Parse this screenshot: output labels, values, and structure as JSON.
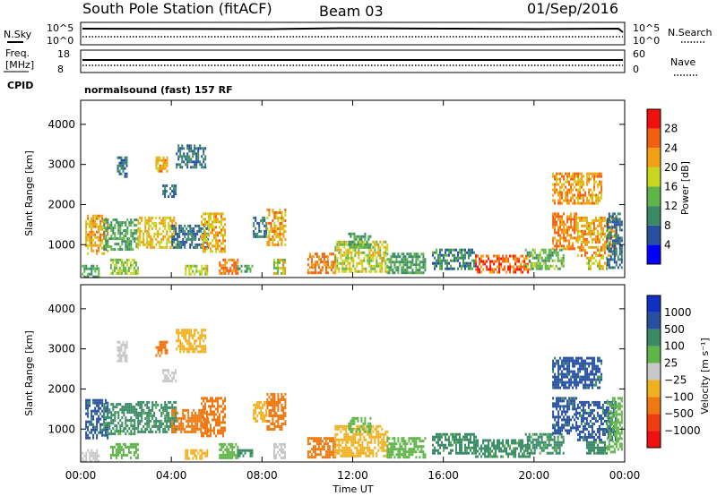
{
  "header": {
    "title": "South Pole Station (fitACF)",
    "beam": "Beam 03",
    "date": "01/Sep/2016"
  },
  "top_panels": {
    "nsky_label": "N.Sky",
    "nsearch_label": "N.Search",
    "nsky_ticks": [
      "10^5",
      "10^0"
    ],
    "nsearch_ticks": [
      "10^5",
      "10^0"
    ],
    "freq_label_1": "Freq.",
    "freq_label_2": "[MHz]",
    "freq_ticks": [
      "18",
      "8"
    ],
    "nave_label": "Nave",
    "nave_ticks": [
      "60",
      "0"
    ],
    "cpid_label": "CPID",
    "cpid_text": "normalsound (fast) 157 RF"
  },
  "colors": {
    "power_scale": [
      "#0000ff",
      "#2850a0",
      "#3a8a66",
      "#5fb548",
      "#c8d620",
      "#f0a010",
      "#f06010",
      "#f01010"
    ],
    "velocity_scale": [
      "#f01010",
      "#f03c10",
      "#f07810",
      "#f0b020",
      "#c8c8c8",
      "#5fb548",
      "#3a8a66",
      "#2850a0",
      "#1030c0"
    ],
    "blank": "#ffffff"
  },
  "chart_data": [
    {
      "type": "heatmap",
      "title": "Power",
      "ylabel": "Slant Range [km]",
      "xlabel": "Time UT",
      "xlim": [
        0,
        24
      ],
      "ylim": [
        180,
        4600
      ],
      "x_tick_labels": [
        "00:00",
        "04:00",
        "08:00",
        "12:00",
        "16:00",
        "20:00",
        "00:00"
      ],
      "y_tick_labels": [
        "1000",
        "2000",
        "3000",
        "4000"
      ],
      "y_ticks": [
        1000,
        2000,
        3000,
        4000
      ],
      "colorbar": {
        "label": "Power [dB]",
        "ticks": [
          "4",
          "8",
          "12",
          "16",
          "20",
          "24",
          "28"
        ],
        "range": [
          0,
          32
        ]
      },
      "regions": [
        {
          "t0": 0.05,
          "t1": 0.8,
          "r0": 180,
          "r1": 500,
          "v": 12
        },
        {
          "t0": 0.2,
          "t1": 1.2,
          "r0": 800,
          "r1": 1750,
          "v": 22
        },
        {
          "t0": 1.0,
          "t1": 2.5,
          "r0": 900,
          "r1": 1650,
          "v": 12
        },
        {
          "t0": 1.3,
          "t1": 2.5,
          "r0": 250,
          "r1": 650,
          "v": 16
        },
        {
          "t0": 2.5,
          "t1": 4.2,
          "r0": 900,
          "r1": 1700,
          "v": 20
        },
        {
          "t0": 4.0,
          "t1": 5.6,
          "r0": 900,
          "r1": 1500,
          "v": 8
        },
        {
          "t0": 5.3,
          "t1": 6.4,
          "r0": 800,
          "r1": 1800,
          "v": 21
        },
        {
          "t0": 1.6,
          "t1": 2.0,
          "r0": 2700,
          "r1": 3200,
          "v": 8
        },
        {
          "t0": 3.3,
          "t1": 3.8,
          "r0": 2800,
          "r1": 3200,
          "v": 22
        },
        {
          "t0": 4.2,
          "t1": 5.5,
          "r0": 2900,
          "r1": 3500,
          "v": 8
        },
        {
          "t0": 3.6,
          "t1": 4.2,
          "r0": 2200,
          "r1": 2500,
          "v": 8
        },
        {
          "t0": 4.6,
          "t1": 5.6,
          "r0": 250,
          "r1": 500,
          "v": 18
        },
        {
          "t0": 6.1,
          "t1": 6.9,
          "r0": 300,
          "r1": 650,
          "v": 24
        },
        {
          "t0": 6.9,
          "t1": 7.6,
          "r0": 300,
          "r1": 500,
          "v": 12
        },
        {
          "t0": 7.6,
          "t1": 8.2,
          "r0": 1200,
          "r1": 1700,
          "v": 8
        },
        {
          "t0": 8.2,
          "t1": 9.0,
          "r0": 1000,
          "r1": 1900,
          "v": 22
        },
        {
          "t0": 8.5,
          "t1": 9.0,
          "r0": 250,
          "r1": 650,
          "v": 18
        },
        {
          "t0": 10.0,
          "t1": 11.2,
          "r0": 300,
          "r1": 800,
          "v": 24
        },
        {
          "t0": 11.2,
          "t1": 13.5,
          "r0": 300,
          "r1": 1100,
          "v": 18
        },
        {
          "t0": 11.8,
          "t1": 12.8,
          "r0": 900,
          "r1": 1300,
          "v": 12
        },
        {
          "t0": 13.5,
          "t1": 15.2,
          "r0": 300,
          "r1": 800,
          "v": 12
        },
        {
          "t0": 15.5,
          "t1": 17.4,
          "r0": 400,
          "r1": 900,
          "v": 10
        },
        {
          "t0": 17.4,
          "t1": 19.8,
          "r0": 300,
          "r1": 750,
          "v": 26
        },
        {
          "t0": 19.6,
          "t1": 21.3,
          "r0": 400,
          "r1": 900,
          "v": 14
        },
        {
          "t0": 20.8,
          "t1": 21.9,
          "r0": 900,
          "r1": 1800,
          "v": 24
        },
        {
          "t0": 21.9,
          "t1": 23.6,
          "r0": 700,
          "r1": 1700,
          "v": 22
        },
        {
          "t0": 22.3,
          "t1": 23.2,
          "r0": 400,
          "r1": 700,
          "v": 18
        },
        {
          "t0": 20.8,
          "t1": 23.0,
          "r0": 2000,
          "r1": 2800,
          "v": 22
        },
        {
          "t0": 23.2,
          "t1": 23.9,
          "r0": 400,
          "r1": 1800,
          "v": 8
        }
      ]
    },
    {
      "type": "heatmap",
      "title": "Velocity",
      "ylabel": "Slant Range [km]",
      "xlabel": "Time UT",
      "xlim": [
        0,
        24
      ],
      "ylim": [
        180,
        4600
      ],
      "x_tick_labels": [
        "00:00",
        "04:00",
        "08:00",
        "12:00",
        "16:00",
        "20:00",
        "00:00"
      ],
      "y_tick_labels": [
        "1000",
        "2000",
        "3000",
        "4000"
      ],
      "y_ticks": [
        1000,
        2000,
        3000,
        4000
      ],
      "colorbar": {
        "label": "Velocity [m s⁻¹]",
        "ticks": [
          "1000",
          "500",
          "100",
          "25",
          "−25",
          "−100",
          "−500",
          "−1000"
        ]
      },
      "regions": [
        {
          "t0": 0.05,
          "t1": 0.8,
          "r0": 180,
          "r1": 500,
          "v": 0
        },
        {
          "t0": 0.2,
          "t1": 1.2,
          "r0": 800,
          "r1": 1750,
          "v": 700
        },
        {
          "t0": 1.0,
          "t1": 2.5,
          "r0": 900,
          "r1": 1650,
          "v": 150
        },
        {
          "t0": 1.3,
          "t1": 2.5,
          "r0": 250,
          "r1": 650,
          "v": 60
        },
        {
          "t0": 2.5,
          "t1": 4.2,
          "r0": 900,
          "r1": 1700,
          "v": 150
        },
        {
          "t0": 4.0,
          "t1": 5.6,
          "r0": 900,
          "r1": 1500,
          "v": -300
        },
        {
          "t0": 5.3,
          "t1": 6.4,
          "r0": 800,
          "r1": 1800,
          "v": -300
        },
        {
          "t0": 1.6,
          "t1": 2.0,
          "r0": 2700,
          "r1": 3200,
          "v": 10
        },
        {
          "t0": 3.3,
          "t1": 3.8,
          "r0": 2800,
          "r1": 3200,
          "v": -200
        },
        {
          "t0": 4.2,
          "t1": 5.5,
          "r0": 2900,
          "r1": 3500,
          "v": -60
        },
        {
          "t0": 3.6,
          "t1": 4.2,
          "r0": 2200,
          "r1": 2500,
          "v": 10
        },
        {
          "t0": 4.6,
          "t1": 5.6,
          "r0": 250,
          "r1": 500,
          "v": -60
        },
        {
          "t0": 6.1,
          "t1": 6.9,
          "r0": 300,
          "r1": 650,
          "v": 60
        },
        {
          "t0": 6.9,
          "t1": 7.6,
          "r0": 300,
          "r1": 500,
          "v": 150
        },
        {
          "t0": 7.6,
          "t1": 8.2,
          "r0": 1200,
          "r1": 1700,
          "v": -60
        },
        {
          "t0": 8.2,
          "t1": 9.0,
          "r0": 1000,
          "r1": 1900,
          "v": -300
        },
        {
          "t0": 8.5,
          "t1": 9.0,
          "r0": 250,
          "r1": 650,
          "v": 10
        },
        {
          "t0": 10.0,
          "t1": 11.2,
          "r0": 300,
          "r1": 800,
          "v": -300
        },
        {
          "t0": 11.2,
          "t1": 13.5,
          "r0": 300,
          "r1": 1100,
          "v": -60
        },
        {
          "t0": 11.8,
          "t1": 12.8,
          "r0": 900,
          "r1": 1300,
          "v": 60
        },
        {
          "t0": 13.5,
          "t1": 15.2,
          "r0": 300,
          "r1": 800,
          "v": 60
        },
        {
          "t0": 15.5,
          "t1": 17.4,
          "r0": 400,
          "r1": 900,
          "v": 150
        },
        {
          "t0": 17.4,
          "t1": 19.8,
          "r0": 300,
          "r1": 750,
          "v": 150
        },
        {
          "t0": 19.6,
          "t1": 21.3,
          "r0": 400,
          "r1": 900,
          "v": 150
        },
        {
          "t0": 20.8,
          "t1": 21.9,
          "r0": 900,
          "r1": 1800,
          "v": 700
        },
        {
          "t0": 21.9,
          "t1": 23.6,
          "r0": 700,
          "r1": 1700,
          "v": 700
        },
        {
          "t0": 22.3,
          "t1": 23.2,
          "r0": 400,
          "r1": 700,
          "v": 150
        },
        {
          "t0": 20.8,
          "t1": 23.0,
          "r0": 2000,
          "r1": 2800,
          "v": 700
        },
        {
          "t0": 23.2,
          "t1": 23.9,
          "r0": 400,
          "r1": 1800,
          "v": 60
        }
      ]
    }
  ]
}
